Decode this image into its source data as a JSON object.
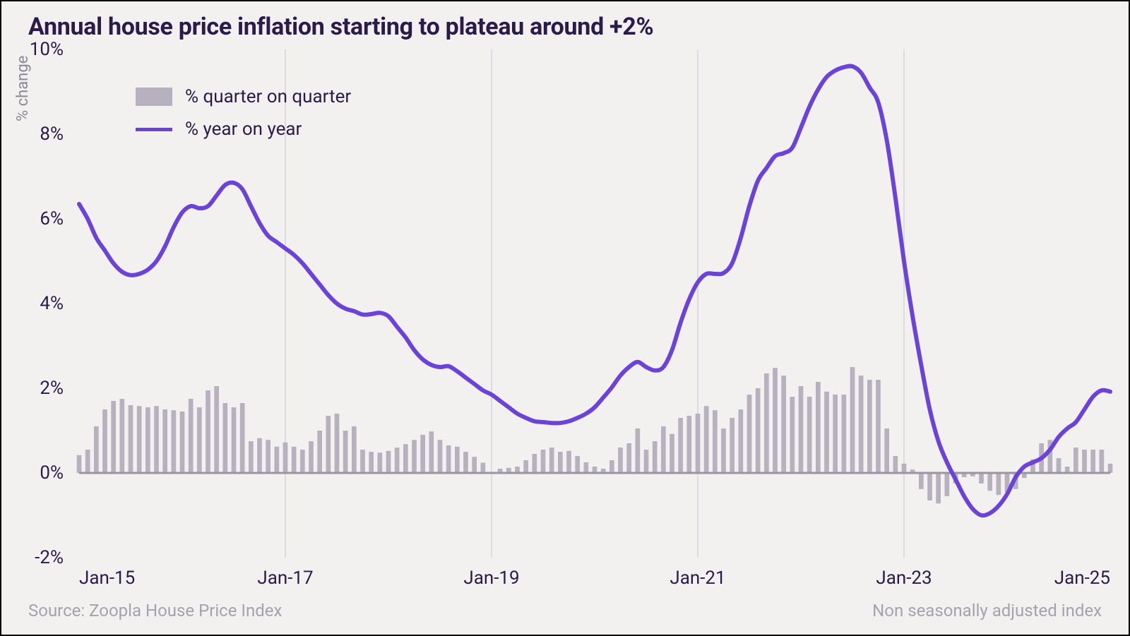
{
  "chart": {
    "type": "combo-bar-line",
    "title": "Annual house price inflation starting to plateau around +2%",
    "title_fontsize": 34,
    "title_color": "#2b1b4a",
    "background_color": "#f3f1f0",
    "border_color": "#000000",
    "y_axis": {
      "title": "% change",
      "title_fontsize": 22,
      "title_color": "#8c8695",
      "min": -2,
      "max": 10,
      "ticks": [
        -2,
        0,
        2,
        4,
        6,
        8,
        10
      ],
      "tick_suffix": "%",
      "tick_fontsize": 26,
      "tick_color": "#2b1b4a",
      "baseline_color": "#9a94a3",
      "baseline_width": 3
    },
    "x_axis": {
      "start_index": 0,
      "end_index": 120,
      "tick_indices": [
        0,
        24,
        48,
        72,
        96,
        120
      ],
      "tick_labels": [
        "Jan-15",
        "Jan-17",
        "Jan-19",
        "Jan-21",
        "Jan-23",
        "Jan-25"
      ],
      "gridline_indices": [
        24,
        48,
        72,
        96
      ],
      "tick_fontsize": 26,
      "tick_color": "#2b1b4a",
      "gridline_color": "#dedae2",
      "gridline_width": 2
    },
    "legend": {
      "items": [
        {
          "kind": "bar",
          "label": "% quarter on quarter",
          "color": "#b6b0bf"
        },
        {
          "kind": "line",
          "label": "% year on year",
          "color": "#6c43d8"
        }
      ],
      "fontsize": 26,
      "text_color": "#2b1b4a"
    },
    "bars": {
      "color": "#b6b0bf",
      "width_fraction": 0.55,
      "values": [
        0.42,
        0.55,
        1.1,
        1.5,
        1.7,
        1.75,
        1.6,
        1.58,
        1.55,
        1.58,
        1.5,
        1.48,
        1.45,
        1.75,
        1.55,
        1.95,
        2.05,
        1.65,
        1.55,
        1.65,
        0.75,
        0.82,
        0.78,
        0.62,
        0.72,
        0.62,
        0.55,
        0.75,
        1.0,
        1.35,
        1.4,
        1.0,
        1.1,
        0.55,
        0.5,
        0.48,
        0.52,
        0.6,
        0.68,
        0.78,
        0.9,
        0.98,
        0.78,
        0.65,
        0.62,
        0.5,
        0.38,
        0.24,
        0.02,
        0.1,
        0.12,
        0.15,
        0.3,
        0.45,
        0.55,
        0.6,
        0.5,
        0.52,
        0.4,
        0.25,
        0.15,
        0.1,
        0.3,
        0.6,
        0.7,
        1.05,
        0.55,
        0.75,
        1.1,
        0.92,
        1.3,
        1.35,
        1.4,
        1.58,
        1.48,
        1.05,
        1.3,
        1.5,
        1.85,
        2.0,
        2.35,
        2.48,
        2.3,
        1.8,
        2.05,
        1.8,
        2.15,
        1.92,
        1.85,
        1.85,
        2.5,
        2.3,
        2.2,
        2.2,
        1.05,
        0.4,
        0.22,
        0.08,
        -0.38,
        -0.65,
        -0.72,
        -0.55,
        -0.25,
        -0.1,
        -0.08,
        -0.25,
        -0.42,
        -0.52,
        -0.45,
        -0.38,
        -0.12,
        0.32,
        0.7,
        0.78,
        0.35,
        0.15,
        0.6,
        0.55,
        0.55,
        0.55,
        0.22
      ]
    },
    "line": {
      "color": "#6c43d8",
      "width": 6,
      "smooth": true,
      "values": [
        6.35,
        6.0,
        5.55,
        5.25,
        4.95,
        4.75,
        4.67,
        4.7,
        4.8,
        5.0,
        5.35,
        5.8,
        6.15,
        6.3,
        6.25,
        6.3,
        6.55,
        6.8,
        6.85,
        6.7,
        6.3,
        5.9,
        5.6,
        5.45,
        5.3,
        5.15,
        4.95,
        4.7,
        4.45,
        4.2,
        4.0,
        3.88,
        3.82,
        3.74,
        3.75,
        3.78,
        3.7,
        3.45,
        3.2,
        2.9,
        2.68,
        2.55,
        2.5,
        2.52,
        2.4,
        2.25,
        2.1,
        1.95,
        1.85,
        1.7,
        1.55,
        1.4,
        1.3,
        1.22,
        1.2,
        1.18,
        1.18,
        1.22,
        1.3,
        1.4,
        1.55,
        1.78,
        2.02,
        2.3,
        2.5,
        2.62,
        2.5,
        2.42,
        2.5,
        2.9,
        3.55,
        4.1,
        4.5,
        4.7,
        4.7,
        4.72,
        4.95,
        5.55,
        6.3,
        6.9,
        7.2,
        7.48,
        7.55,
        7.68,
        8.15,
        8.65,
        9.05,
        9.35,
        9.5,
        9.58,
        9.6,
        9.45,
        9.1,
        8.75,
        7.85,
        6.5,
        5.0,
        3.7,
        2.55,
        1.5,
        0.75,
        0.25,
        -0.15,
        -0.55,
        -0.85,
        -1.0,
        -0.95,
        -0.78,
        -0.5,
        -0.1,
        0.15,
        0.25,
        0.35,
        0.55,
        0.85,
        1.05,
        1.2,
        1.5,
        1.8,
        1.95,
        1.92
      ]
    },
    "footer": {
      "left": "Source: Zoopla House Price Index",
      "right": "Non seasonally adjusted index",
      "fontsize": 24,
      "color": "#a6a1ae"
    }
  }
}
